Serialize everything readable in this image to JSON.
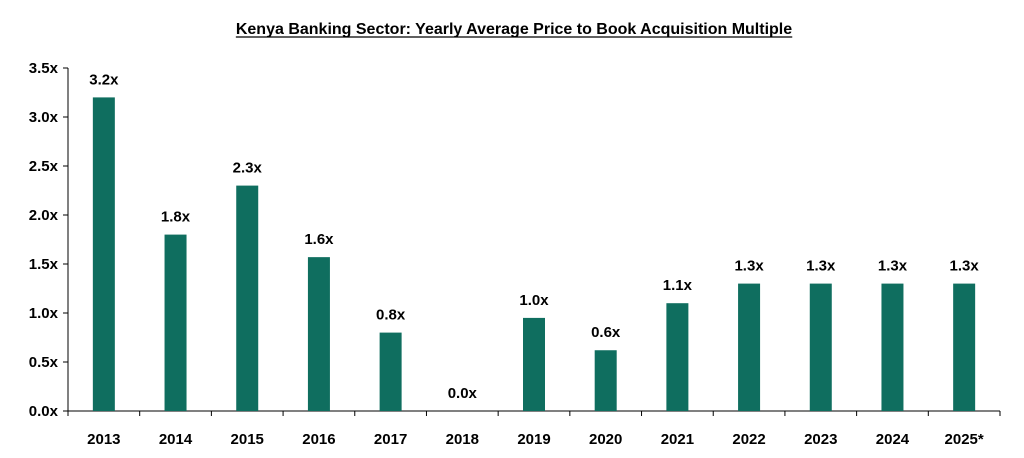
{
  "chart_data": {
    "type": "bar",
    "title": "Kenya Banking Sector: Yearly Average Price to Book Acquisition Multiple",
    "xlabel": "",
    "ylabel": "",
    "categories": [
      "2013",
      "2014",
      "2015",
      "2016",
      "2017",
      "2018",
      "2019",
      "2020",
      "2021",
      "2022",
      "2023",
      "2024",
      "2025*"
    ],
    "values": [
      3.2,
      1.8,
      2.3,
      1.57,
      0.8,
      0.0,
      0.95,
      0.62,
      1.1,
      1.3,
      1.3,
      1.3,
      1.3
    ],
    "data_labels": [
      "3.2x",
      "1.8x",
      "2.3x",
      "1.6x",
      "0.8x",
      "0.0x",
      "1.0x",
      "0.6x",
      "1.1x",
      "1.3x",
      "1.3x",
      "1.3x",
      "1.3x"
    ],
    "yticks": [
      0,
      0.5,
      1.0,
      1.5,
      2.0,
      2.5,
      3.0,
      3.5
    ],
    "ytick_labels": [
      "0.0x",
      "0.5x",
      "1.0x",
      "1.5x",
      "2.0x",
      "2.5x",
      "3.0x",
      "3.5x"
    ],
    "ylim": [
      0,
      3.5
    ],
    "grid": false,
    "legend": "none",
    "bar_color": "#0f6e5f"
  }
}
